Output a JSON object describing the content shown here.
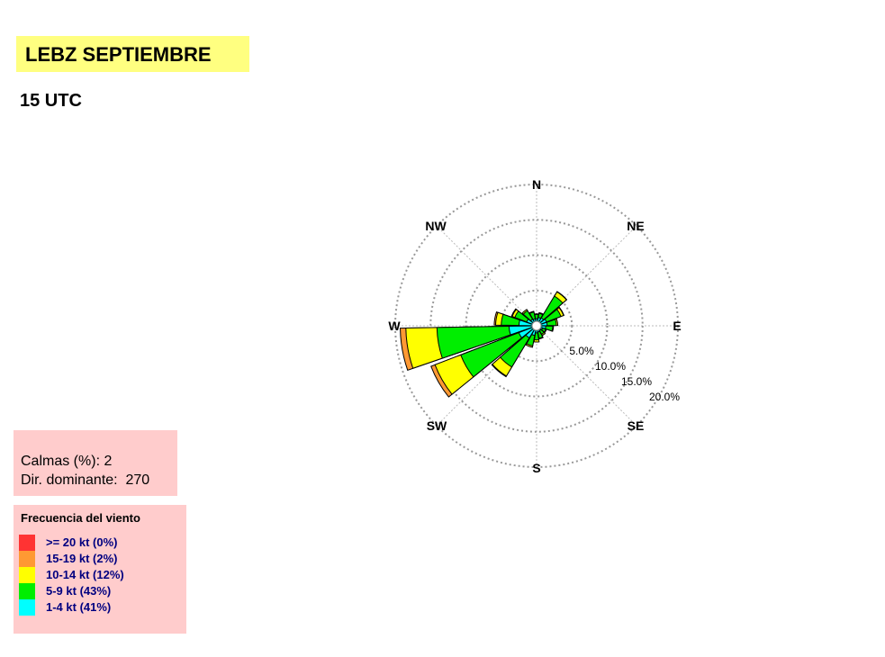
{
  "header": {
    "title": "LEBZ SEPTIEMBRE",
    "subtitle": "15 UTC",
    "title_bg": "#ffff80"
  },
  "stats": {
    "calms_label": "Calmas (%): 2",
    "dominant_label": "Dir. dominante:  270"
  },
  "legend": {
    "title": "Frecuencia del viento",
    "items": [
      {
        "label": ">= 20 kt (0%)",
        "color": "#ff3333"
      },
      {
        "label": "15-19 kt (2%)",
        "color": "#ff9933"
      },
      {
        "label": "10-14 kt (12%)",
        "color": "#ffff00"
      },
      {
        "label": "5-9 kt (43%)",
        "color": "#00ee00"
      },
      {
        "label": "1-4 kt (41%)",
        "color": "#00ffff"
      }
    ]
  },
  "chart_data": {
    "type": "windrose",
    "directions_deg": [
      0,
      20,
      40,
      60,
      80,
      100,
      120,
      140,
      160,
      180,
      200,
      220,
      240,
      260,
      280,
      300,
      320,
      340
    ],
    "compass_labels": [
      "N",
      "NE",
      "E",
      "SE",
      "S",
      "SW",
      "W",
      "NW"
    ],
    "radial_ticks": [
      "5.0%",
      "10.0%",
      "15.0%",
      "20.0%"
    ],
    "radial_max": 20,
    "series": [
      {
        "name": "1-4 kt",
        "color": "#00ffff",
        "values": [
          1.0,
          1.2,
          1.3,
          1.5,
          1.5,
          1.3,
          0.9,
          0.8,
          0.9,
          1.0,
          1.4,
          2.0,
          2.7,
          3.9,
          2.5,
          1.5,
          1.1,
          1.0
        ]
      },
      {
        "name": "5-9 kt",
        "color": "#00ee00",
        "values": [
          0.6,
          0.6,
          3.6,
          2.2,
          1.3,
          1.0,
          0.5,
          0.6,
          0.9,
          1.0,
          1.5,
          4.8,
          8.8,
          10.2,
          2.5,
          1.8,
          1.4,
          1.0
        ]
      },
      {
        "name": "10-14 kt",
        "color": "#ffff00",
        "values": [
          0.1,
          0.1,
          0.7,
          0.4,
          0.2,
          0.1,
          0.1,
          0.2,
          0.1,
          0.3,
          0.2,
          1.5,
          3.9,
          4.4,
          0.8,
          0.4,
          0.2,
          0.1
        ]
      },
      {
        "name": "15-19 kt",
        "color": "#ff9933",
        "values": [
          0,
          0,
          0.05,
          0.05,
          0,
          0,
          0,
          0,
          0,
          0,
          0,
          0.1,
          0.6,
          0.8,
          0.2,
          0.1,
          0,
          0
        ]
      },
      {
        "name": ">= 20 kt",
        "color": "#ff3333",
        "values": [
          0,
          0,
          0,
          0,
          0,
          0,
          0,
          0,
          0,
          0,
          0,
          0,
          0,
          0,
          0,
          0,
          0,
          0
        ]
      }
    ],
    "grid": true
  }
}
